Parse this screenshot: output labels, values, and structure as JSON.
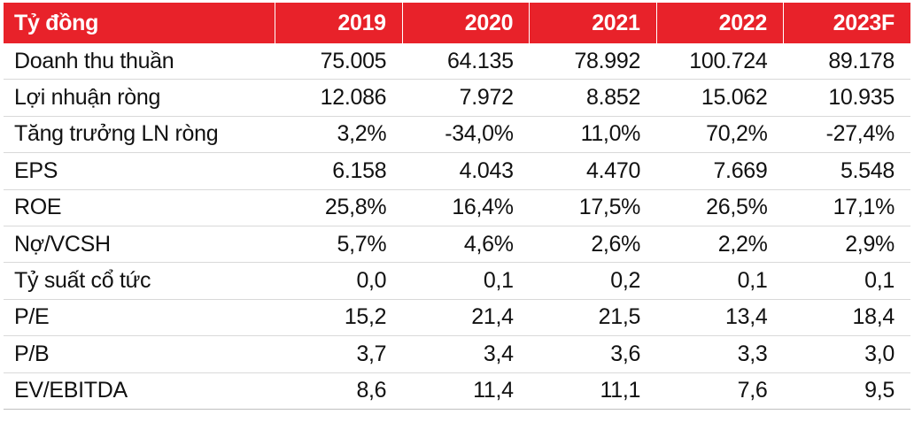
{
  "table": {
    "header": {
      "unit_label": "Tỷ đồng",
      "years": [
        "2019",
        "2020",
        "2021",
        "2022",
        "2023F"
      ]
    },
    "rows": [
      {
        "label": "Doanh thu thuần",
        "values": [
          "75.005",
          "64.135",
          "78.992",
          "100.724",
          "89.178"
        ]
      },
      {
        "label": "Lợi nhuận ròng",
        "values": [
          "12.086",
          "7.972",
          "8.852",
          "15.062",
          "10.935"
        ]
      },
      {
        "label": "Tăng trưởng LN ròng",
        "values": [
          "3,2%",
          "-34,0%",
          "11,0%",
          "70,2%",
          "-27,4%"
        ]
      },
      {
        "label": "EPS",
        "values": [
          "6.158",
          "4.043",
          "4.470",
          "7.669",
          "5.548"
        ]
      },
      {
        "label": "ROE",
        "values": [
          "25,8%",
          "16,4%",
          "17,5%",
          "26,5%",
          "17,1%"
        ]
      },
      {
        "label": "Nợ/VCSH",
        "values": [
          "5,7%",
          "4,6%",
          "2,6%",
          "2,2%",
          "2,9%"
        ]
      },
      {
        "label": "Tỷ suất cổ tức",
        "values": [
          "0,0",
          "0,1",
          "0,2",
          "0,1",
          "0,1"
        ]
      },
      {
        "label": "P/E",
        "values": [
          "15,2",
          "21,4",
          "21,5",
          "13,4",
          "18,4"
        ]
      },
      {
        "label": "P/B",
        "values": [
          "3,7",
          "3,4",
          "3,6",
          "3,3",
          "3,0"
        ]
      },
      {
        "label": "EV/EBITDA",
        "values": [
          "8,6",
          "11,4",
          "11,1",
          "7,6",
          "9,5"
        ]
      }
    ]
  },
  "colors": {
    "header_bg": "#e8222a",
    "header_text": "#ffffff",
    "body_text": "#111111"
  }
}
